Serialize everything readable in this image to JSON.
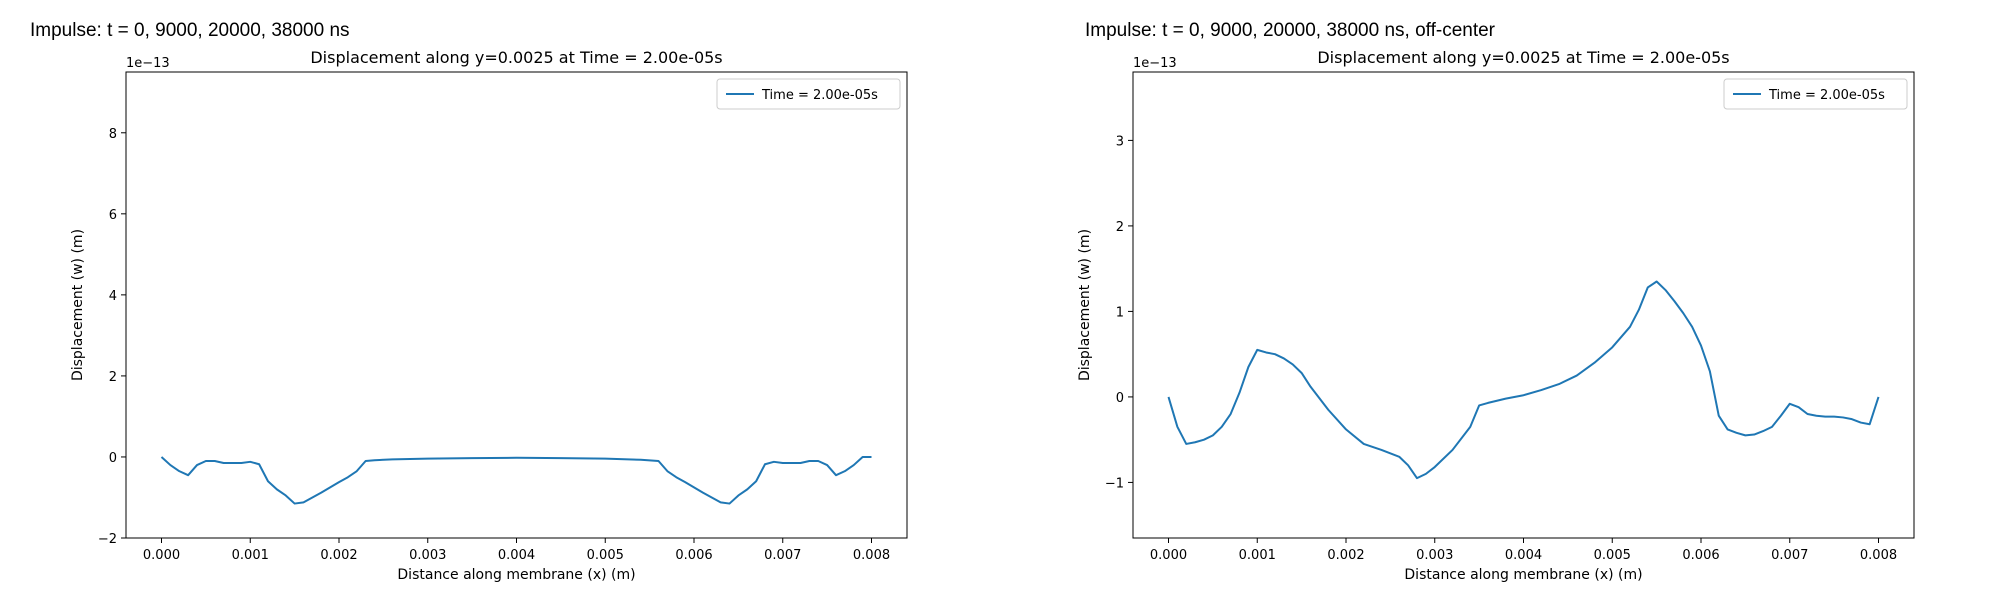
{
  "headings": {
    "left": "Impulse: t = 0, 9000, 20000, 38000 ns",
    "right": "Impulse: t = 0, 9000, 20000, 38000 ns, off-center"
  },
  "colors": {
    "line": "#1f77b4",
    "axes": "#000000"
  },
  "chart_data": [
    {
      "type": "line",
      "title": "Displacement along y=0.0025 at Time = 2.00e-05s",
      "xlabel": "Distance along membrane (x) (m)",
      "ylabel": "Displacement (w) (m)",
      "scale_label": "1e−13",
      "xlim": [
        -0.0004,
        0.0084
      ],
      "ylim": [
        -2.0,
        9.5
      ],
      "xticks": [
        0.0,
        0.001,
        0.002,
        0.003,
        0.004,
        0.005,
        0.006,
        0.007,
        0.008
      ],
      "xtick_labels": [
        "0.000",
        "0.001",
        "0.002",
        "0.003",
        "0.004",
        "0.005",
        "0.006",
        "0.007",
        "0.008"
      ],
      "yticks": [
        -2,
        0,
        2,
        4,
        6,
        8
      ],
      "ytick_labels": [
        "−2",
        "0",
        "2",
        "4",
        "6",
        "8"
      ],
      "grid": false,
      "legend_position": "top-right",
      "series": [
        {
          "name": "Time = 2.00e-05s",
          "x": [
            0.0,
            0.0001,
            0.0002,
            0.0003,
            0.0004,
            0.0005,
            0.0006,
            0.0007,
            0.0008,
            0.0009,
            0.001,
            0.0011,
            0.0012,
            0.0013,
            0.0014,
            0.0015,
            0.0016,
            0.0017,
            0.0018,
            0.0019,
            0.002,
            0.0021,
            0.0022,
            0.0023,
            0.0024,
            0.0026,
            0.003,
            0.0035,
            0.004,
            0.0045,
            0.005,
            0.0054,
            0.0056,
            0.0057,
            0.0058,
            0.0059,
            0.006,
            0.0061,
            0.0062,
            0.0063,
            0.0064,
            0.0065,
            0.0066,
            0.0067,
            0.0068,
            0.0069,
            0.007,
            0.0071,
            0.0072,
            0.0073,
            0.0074,
            0.0075,
            0.0076,
            0.0077,
            0.0078,
            0.0079,
            0.008
          ],
          "y": [
            0.0,
            -0.2,
            -0.35,
            -0.45,
            -0.2,
            -0.1,
            -0.1,
            -0.15,
            -0.15,
            -0.15,
            -0.12,
            -0.18,
            -0.6,
            -0.8,
            -0.95,
            -1.15,
            -1.12,
            -1.0,
            -0.88,
            -0.75,
            -0.62,
            -0.5,
            -0.35,
            -0.1,
            -0.08,
            -0.06,
            -0.04,
            -0.03,
            -0.02,
            -0.03,
            -0.04,
            -0.07,
            -0.1,
            -0.35,
            -0.5,
            -0.62,
            -0.75,
            -0.88,
            -1.0,
            -1.12,
            -1.15,
            -0.95,
            -0.8,
            -0.6,
            -0.18,
            -0.12,
            -0.15,
            -0.15,
            -0.15,
            -0.1,
            -0.1,
            -0.2,
            -0.45,
            -0.35,
            -0.2,
            0.0,
            0.0
          ]
        }
      ]
    },
    {
      "type": "line",
      "title": "Displacement along y=0.0025 at Time = 2.00e-05s",
      "xlabel": "Distance along membrane (x) (m)",
      "ylabel": "Displacement (w) (m)",
      "scale_label": "1e−13",
      "xlim": [
        -0.0004,
        0.0084
      ],
      "ylim": [
        -1.65,
        3.8
      ],
      "xticks": [
        0.0,
        0.001,
        0.002,
        0.003,
        0.004,
        0.005,
        0.006,
        0.007,
        0.008
      ],
      "xtick_labels": [
        "0.000",
        "0.001",
        "0.002",
        "0.003",
        "0.004",
        "0.005",
        "0.006",
        "0.007",
        "0.008"
      ],
      "yticks": [
        -1,
        0,
        1,
        2,
        3
      ],
      "ytick_labels": [
        "−1",
        "0",
        "1",
        "2",
        "3"
      ],
      "grid": false,
      "legend_position": "top-right",
      "series": [
        {
          "name": "Time = 2.00e-05s",
          "x": [
            0.0,
            0.0001,
            0.0002,
            0.0003,
            0.0004,
            0.0005,
            0.0006,
            0.0007,
            0.0008,
            0.0009,
            0.001,
            0.0011,
            0.0012,
            0.0013,
            0.0014,
            0.0015,
            0.0016,
            0.0018,
            0.002,
            0.0022,
            0.0024,
            0.0026,
            0.0027,
            0.0028,
            0.0029,
            0.003,
            0.0032,
            0.0034,
            0.0035,
            0.0036,
            0.0038,
            0.004,
            0.0042,
            0.0044,
            0.0046,
            0.0048,
            0.005,
            0.0052,
            0.0053,
            0.0054,
            0.0055,
            0.0056,
            0.0057,
            0.0058,
            0.0059,
            0.006,
            0.0061,
            0.0062,
            0.0063,
            0.0064,
            0.0065,
            0.0066,
            0.0067,
            0.0068,
            0.0069,
            0.007,
            0.0071,
            0.0072,
            0.0073,
            0.0074,
            0.0075,
            0.0076,
            0.0077,
            0.0078,
            0.0079,
            0.008
          ],
          "y": [
            0.0,
            -0.35,
            -0.55,
            -0.53,
            -0.5,
            -0.45,
            -0.35,
            -0.2,
            0.05,
            0.35,
            0.55,
            0.52,
            0.5,
            0.45,
            0.38,
            0.28,
            0.12,
            -0.15,
            -0.38,
            -0.55,
            -0.62,
            -0.7,
            -0.8,
            -0.95,
            -0.9,
            -0.82,
            -0.62,
            -0.35,
            -0.1,
            -0.07,
            -0.02,
            0.02,
            0.08,
            0.15,
            0.25,
            0.4,
            0.58,
            0.82,
            1.02,
            1.28,
            1.35,
            1.25,
            1.12,
            0.98,
            0.82,
            0.6,
            0.3,
            -0.22,
            -0.38,
            -0.42,
            -0.45,
            -0.44,
            -0.4,
            -0.35,
            -0.22,
            -0.08,
            -0.12,
            -0.2,
            -0.22,
            -0.23,
            -0.23,
            -0.24,
            -0.26,
            -0.3,
            -0.32,
            0.0
          ]
        }
      ]
    }
  ]
}
